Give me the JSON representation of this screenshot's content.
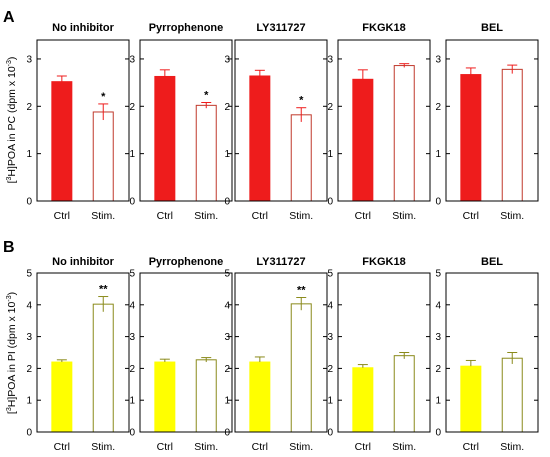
{
  "chart_data": [
    {
      "type": "bar",
      "panel_letter": "A",
      "ylabel": {
        "pre": "[",
        "sup1": "3",
        "mid": "H]POA in PC (dpm x 10",
        "sup2": "-3",
        "post": ")"
      },
      "ylim": [
        0,
        3.4
      ],
      "yticks": [
        0,
        1,
        2,
        3
      ],
      "categories": [
        "Ctrl",
        "Stim."
      ],
      "colors": {
        "ctrl": "#ee1c1c",
        "stim_fill": "#ffffff",
        "stim_edge": "#c0392b",
        "err": "#ee1c1c"
      },
      "subplots": [
        {
          "title": "No inhibitor",
          "values": [
            2.52,
            1.88
          ],
          "errors": [
            0.12,
            0.17
          ],
          "sig": [
            "",
            "*"
          ]
        },
        {
          "title": "Pyrrophenone",
          "values": [
            2.63,
            2.02
          ],
          "errors": [
            0.14,
            0.06
          ],
          "sig": [
            "",
            "*"
          ]
        },
        {
          "title": "LY311727",
          "values": [
            2.64,
            1.82
          ],
          "errors": [
            0.12,
            0.15
          ],
          "sig": [
            "",
            "*"
          ]
        },
        {
          "title": "FKGK18",
          "values": [
            2.57,
            2.86
          ],
          "errors": [
            0.2,
            0.04
          ],
          "sig": [
            "",
            ""
          ]
        },
        {
          "title": "BEL",
          "values": [
            2.67,
            2.78
          ],
          "errors": [
            0.14,
            0.09
          ],
          "sig": [
            "",
            ""
          ]
        }
      ]
    },
    {
      "type": "bar",
      "panel_letter": "B",
      "ylabel": {
        "pre": "[",
        "sup1": "3",
        "mid": "H]POA in PI (dpm x 10",
        "sup2": "-3",
        "post": ")"
      },
      "ylim": [
        0,
        5
      ],
      "yticks": [
        0,
        1,
        2,
        3,
        4,
        5
      ],
      "categories": [
        "Ctrl",
        "Stim."
      ],
      "colors": {
        "ctrl": "#ffff00",
        "stim_fill": "#ffffff",
        "stim_edge": "#8a8a1a",
        "err": "#8a8a1a"
      },
      "subplots": [
        {
          "title": "No inhibitor",
          "values": [
            2.2,
            4.02
          ],
          "errors": [
            0.07,
            0.24
          ],
          "sig": [
            "",
            "**"
          ]
        },
        {
          "title": "Pyrrophenone",
          "values": [
            2.2,
            2.27
          ],
          "errors": [
            0.09,
            0.07
          ],
          "sig": [
            "",
            ""
          ]
        },
        {
          "title": "LY311727",
          "values": [
            2.2,
            4.03
          ],
          "errors": [
            0.16,
            0.2
          ],
          "sig": [
            "",
            "**"
          ]
        },
        {
          "title": "FKGK18",
          "values": [
            2.02,
            2.4
          ],
          "errors": [
            0.1,
            0.1
          ],
          "sig": [
            "",
            ""
          ]
        },
        {
          "title": "BEL",
          "values": [
            2.07,
            2.32
          ],
          "errors": [
            0.18,
            0.18
          ],
          "sig": [
            "",
            ""
          ]
        }
      ]
    }
  ]
}
